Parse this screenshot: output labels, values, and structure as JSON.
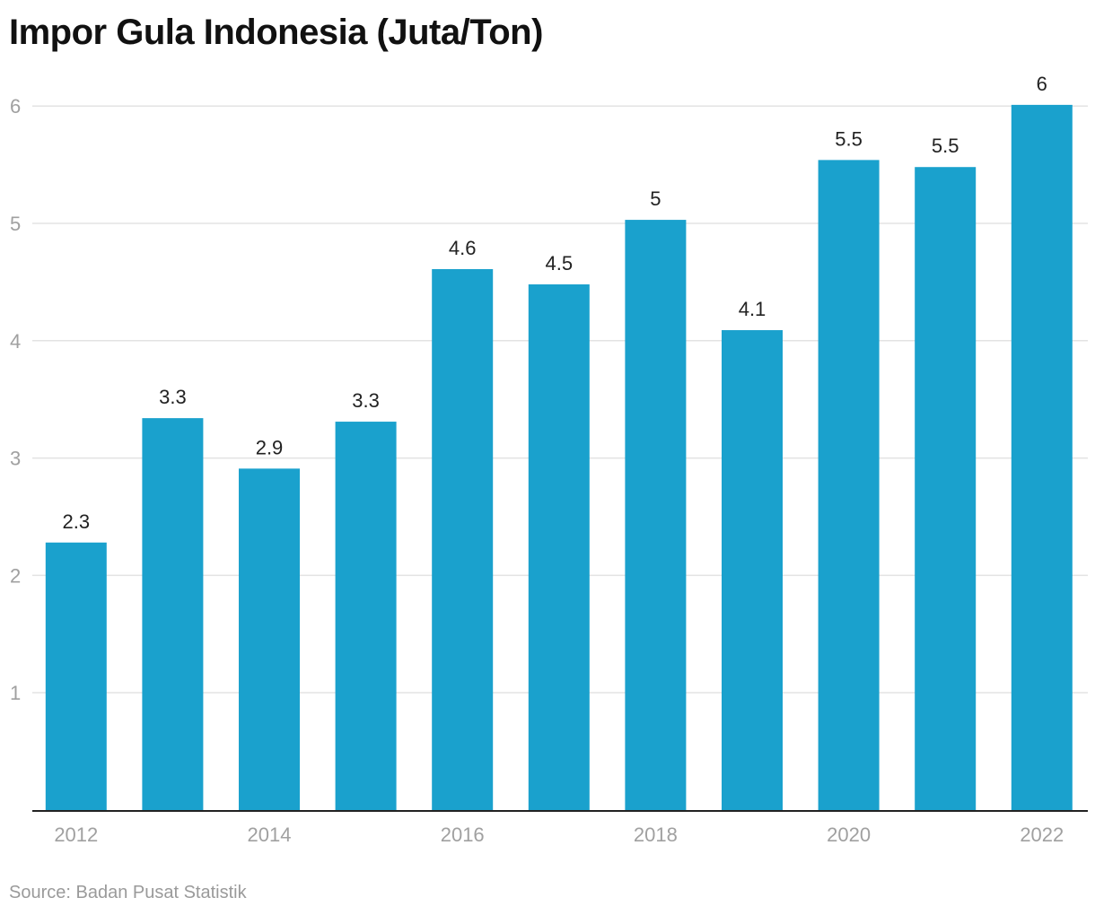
{
  "chart_data": {
    "type": "bar",
    "title": "Impor Gula Indonesia (Juta/Ton)",
    "xlabel": "",
    "ylabel": "",
    "categories": [
      "2012",
      "2013",
      "2014",
      "2015",
      "2016",
      "2017",
      "2018",
      "2019",
      "2020",
      "2021",
      "2022"
    ],
    "values": [
      2.28,
      3.34,
      2.91,
      3.31,
      4.61,
      4.48,
      5.03,
      4.09,
      5.54,
      5.48,
      6.01
    ],
    "data_labels": [
      "2.3",
      "3.3",
      "2.9",
      "3.3",
      "4.6",
      "4.5",
      "5",
      "4.1",
      "5.5",
      "5.5",
      "6"
    ],
    "x_tick_labels": [
      "2012",
      "",
      "2014",
      "",
      "2016",
      "",
      "2018",
      "",
      "2020",
      "",
      "2022"
    ],
    "y_ticks": [
      1,
      2,
      3,
      4,
      5,
      6
    ],
    "ylim": [
      0,
      6.3
    ],
    "grid": true,
    "bar_color": "#1aa1cd",
    "source": "Source: Badan Pusat Statistik"
  }
}
